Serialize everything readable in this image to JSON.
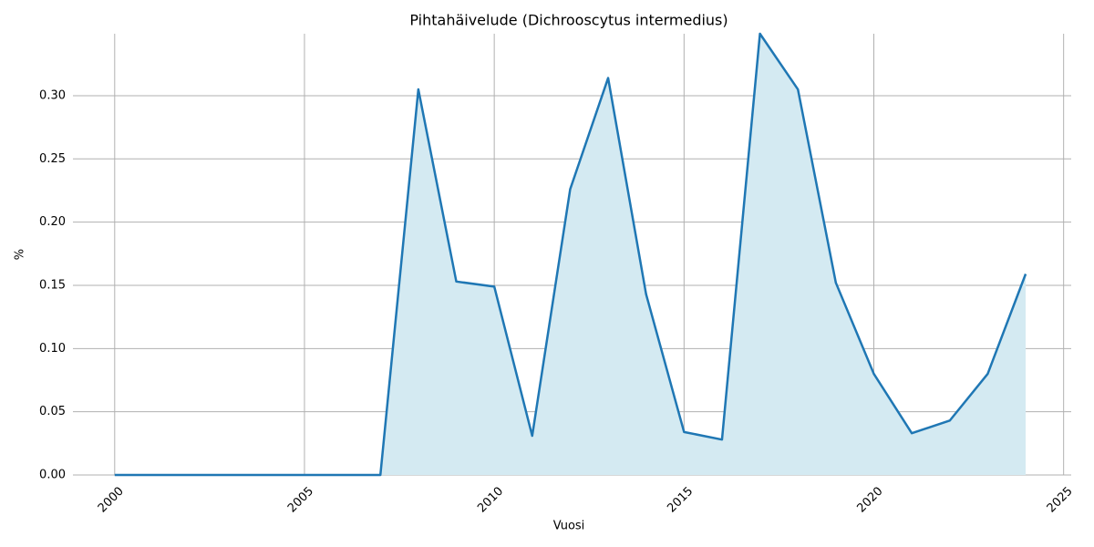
{
  "chart_data": {
    "type": "area-line",
    "title": "Pihtahäivelude (Dichrooscytus intermedius)",
    "xlabel": "Vuosi",
    "ylabel": "%",
    "x": [
      2000,
      2001,
      2002,
      2003,
      2004,
      2005,
      2006,
      2007,
      2008,
      2009,
      2010,
      2011,
      2012,
      2013,
      2014,
      2015,
      2016,
      2017,
      2018,
      2019,
      2020,
      2021,
      2022,
      2023,
      2024
    ],
    "values": [
      0,
      0,
      0,
      0,
      0,
      0,
      0,
      0,
      0.305,
      0.153,
      0.149,
      0.031,
      0.226,
      0.314,
      0.143,
      0.034,
      0.028,
      0.349,
      0.305,
      0.152,
      0.08,
      0.033,
      0.043,
      0.08,
      0.159
    ],
    "color": "#1f77b4",
    "fill_color": "#d4eaf2",
    "xlim": [
      1998.9,
      2025.2
    ],
    "xticks": [
      2000,
      2005,
      2010,
      2015,
      2020,
      2025
    ],
    "ylim": [
      0,
      0.349
    ],
    "yticks": [
      {
        "value": 0,
        "label": "0.00"
      },
      {
        "value": 0.05,
        "label": "0.05"
      },
      {
        "value": 0.1,
        "label": "0.10"
      },
      {
        "value": 0.15,
        "label": "0.15"
      },
      {
        "value": 0.2,
        "label": "0.20"
      },
      {
        "value": 0.25,
        "label": "0.25"
      },
      {
        "value": 0.3,
        "label": "0.30"
      }
    ],
    "grid": true
  }
}
